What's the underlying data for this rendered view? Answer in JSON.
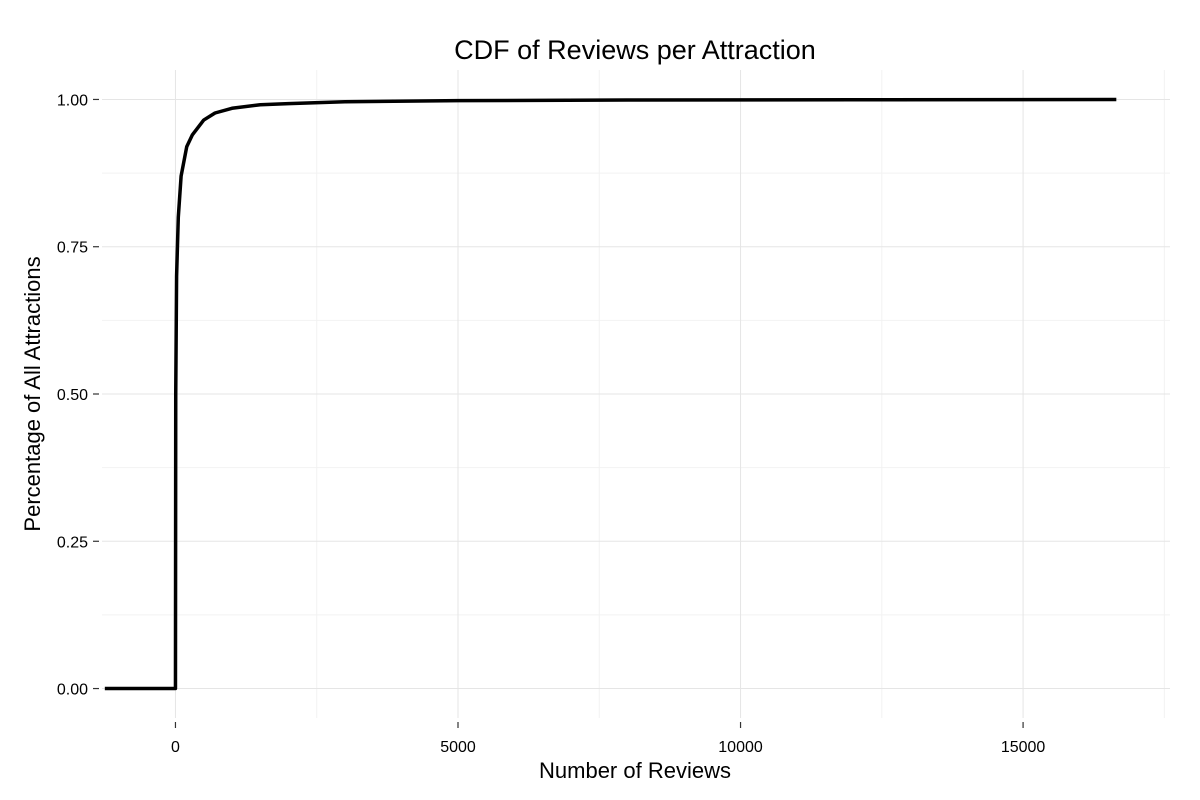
{
  "chart_data": {
    "type": "line",
    "title": "CDF of Reviews per Attraction",
    "xlabel": "Number of Reviews",
    "ylabel": "Percentage of All Attractions",
    "xlim": [
      -1300,
      17600
    ],
    "ylim": [
      -0.05,
      1.05
    ],
    "x_ticks": [
      0,
      5000,
      10000,
      15000
    ],
    "x_tick_labels": [
      "0",
      "5000",
      "10000",
      "15000"
    ],
    "y_ticks": [
      0,
      0.25,
      0.5,
      0.75,
      1
    ],
    "y_tick_labels": [
      "0.00",
      "0.25",
      "0.50",
      "0.75",
      "1.00"
    ],
    "grid": true,
    "legend": "none",
    "series": [
      {
        "color": "#000000",
        "points": [
          [
            -1250,
            0
          ],
          [
            0,
            0
          ],
          [
            5,
            0.5
          ],
          [
            20,
            0.7
          ],
          [
            50,
            0.8
          ],
          [
            100,
            0.87
          ],
          [
            200,
            0.92
          ],
          [
            300,
            0.94
          ],
          [
            500,
            0.965
          ],
          [
            700,
            0.977
          ],
          [
            1000,
            0.985
          ],
          [
            1500,
            0.991
          ],
          [
            2000,
            0.993
          ],
          [
            3000,
            0.996
          ],
          [
            5000,
            0.998
          ],
          [
            8000,
            0.999
          ],
          [
            12000,
            0.9995
          ],
          [
            16650,
            1.0
          ]
        ]
      }
    ]
  }
}
